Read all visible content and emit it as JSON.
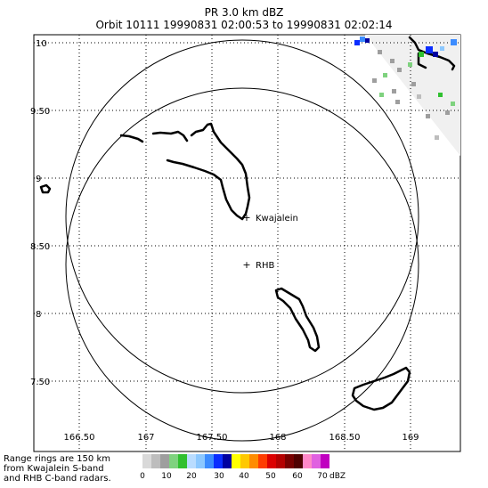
{
  "title": {
    "line1": "PR  3.0 km dBZ",
    "line2": "Orbit 10111 19990831 02:00:53 to 19990831 02:02:14"
  },
  "map": {
    "lat_labels": [
      "10",
      "9.50",
      "9",
      "8.50",
      "8",
      "7.50"
    ],
    "lon_labels": [
      "166.50",
      "167",
      "167.50",
      "168",
      "168.50",
      "169"
    ],
    "sites": [
      {
        "name": "Kwajalein",
        "marker": "+"
      },
      {
        "name": "RHB",
        "marker": "+"
      }
    ]
  },
  "legend": {
    "note_lines": [
      "Range rings are 150 km",
      "from Kwajalein S-band",
      "and RHB C-band radars."
    ],
    "tick_labels": [
      "0",
      "10",
      "20",
      "30",
      "40",
      "50",
      "60",
      "70"
    ],
    "unit": "dBZ",
    "colors": [
      "#d9d9d9",
      "#bdbdbd",
      "#9e9e9e",
      "#7fd27f",
      "#30c030",
      "#b9dcff",
      "#8cc8ff",
      "#3c8cff",
      "#0a2dff",
      "#0000a0",
      "#ffff00",
      "#ffc800",
      "#ff8c00",
      "#ff3c00",
      "#dc0000",
      "#b40000",
      "#780000",
      "#500000",
      "#ff88c8",
      "#e060e0",
      "#c000c0"
    ]
  }
}
